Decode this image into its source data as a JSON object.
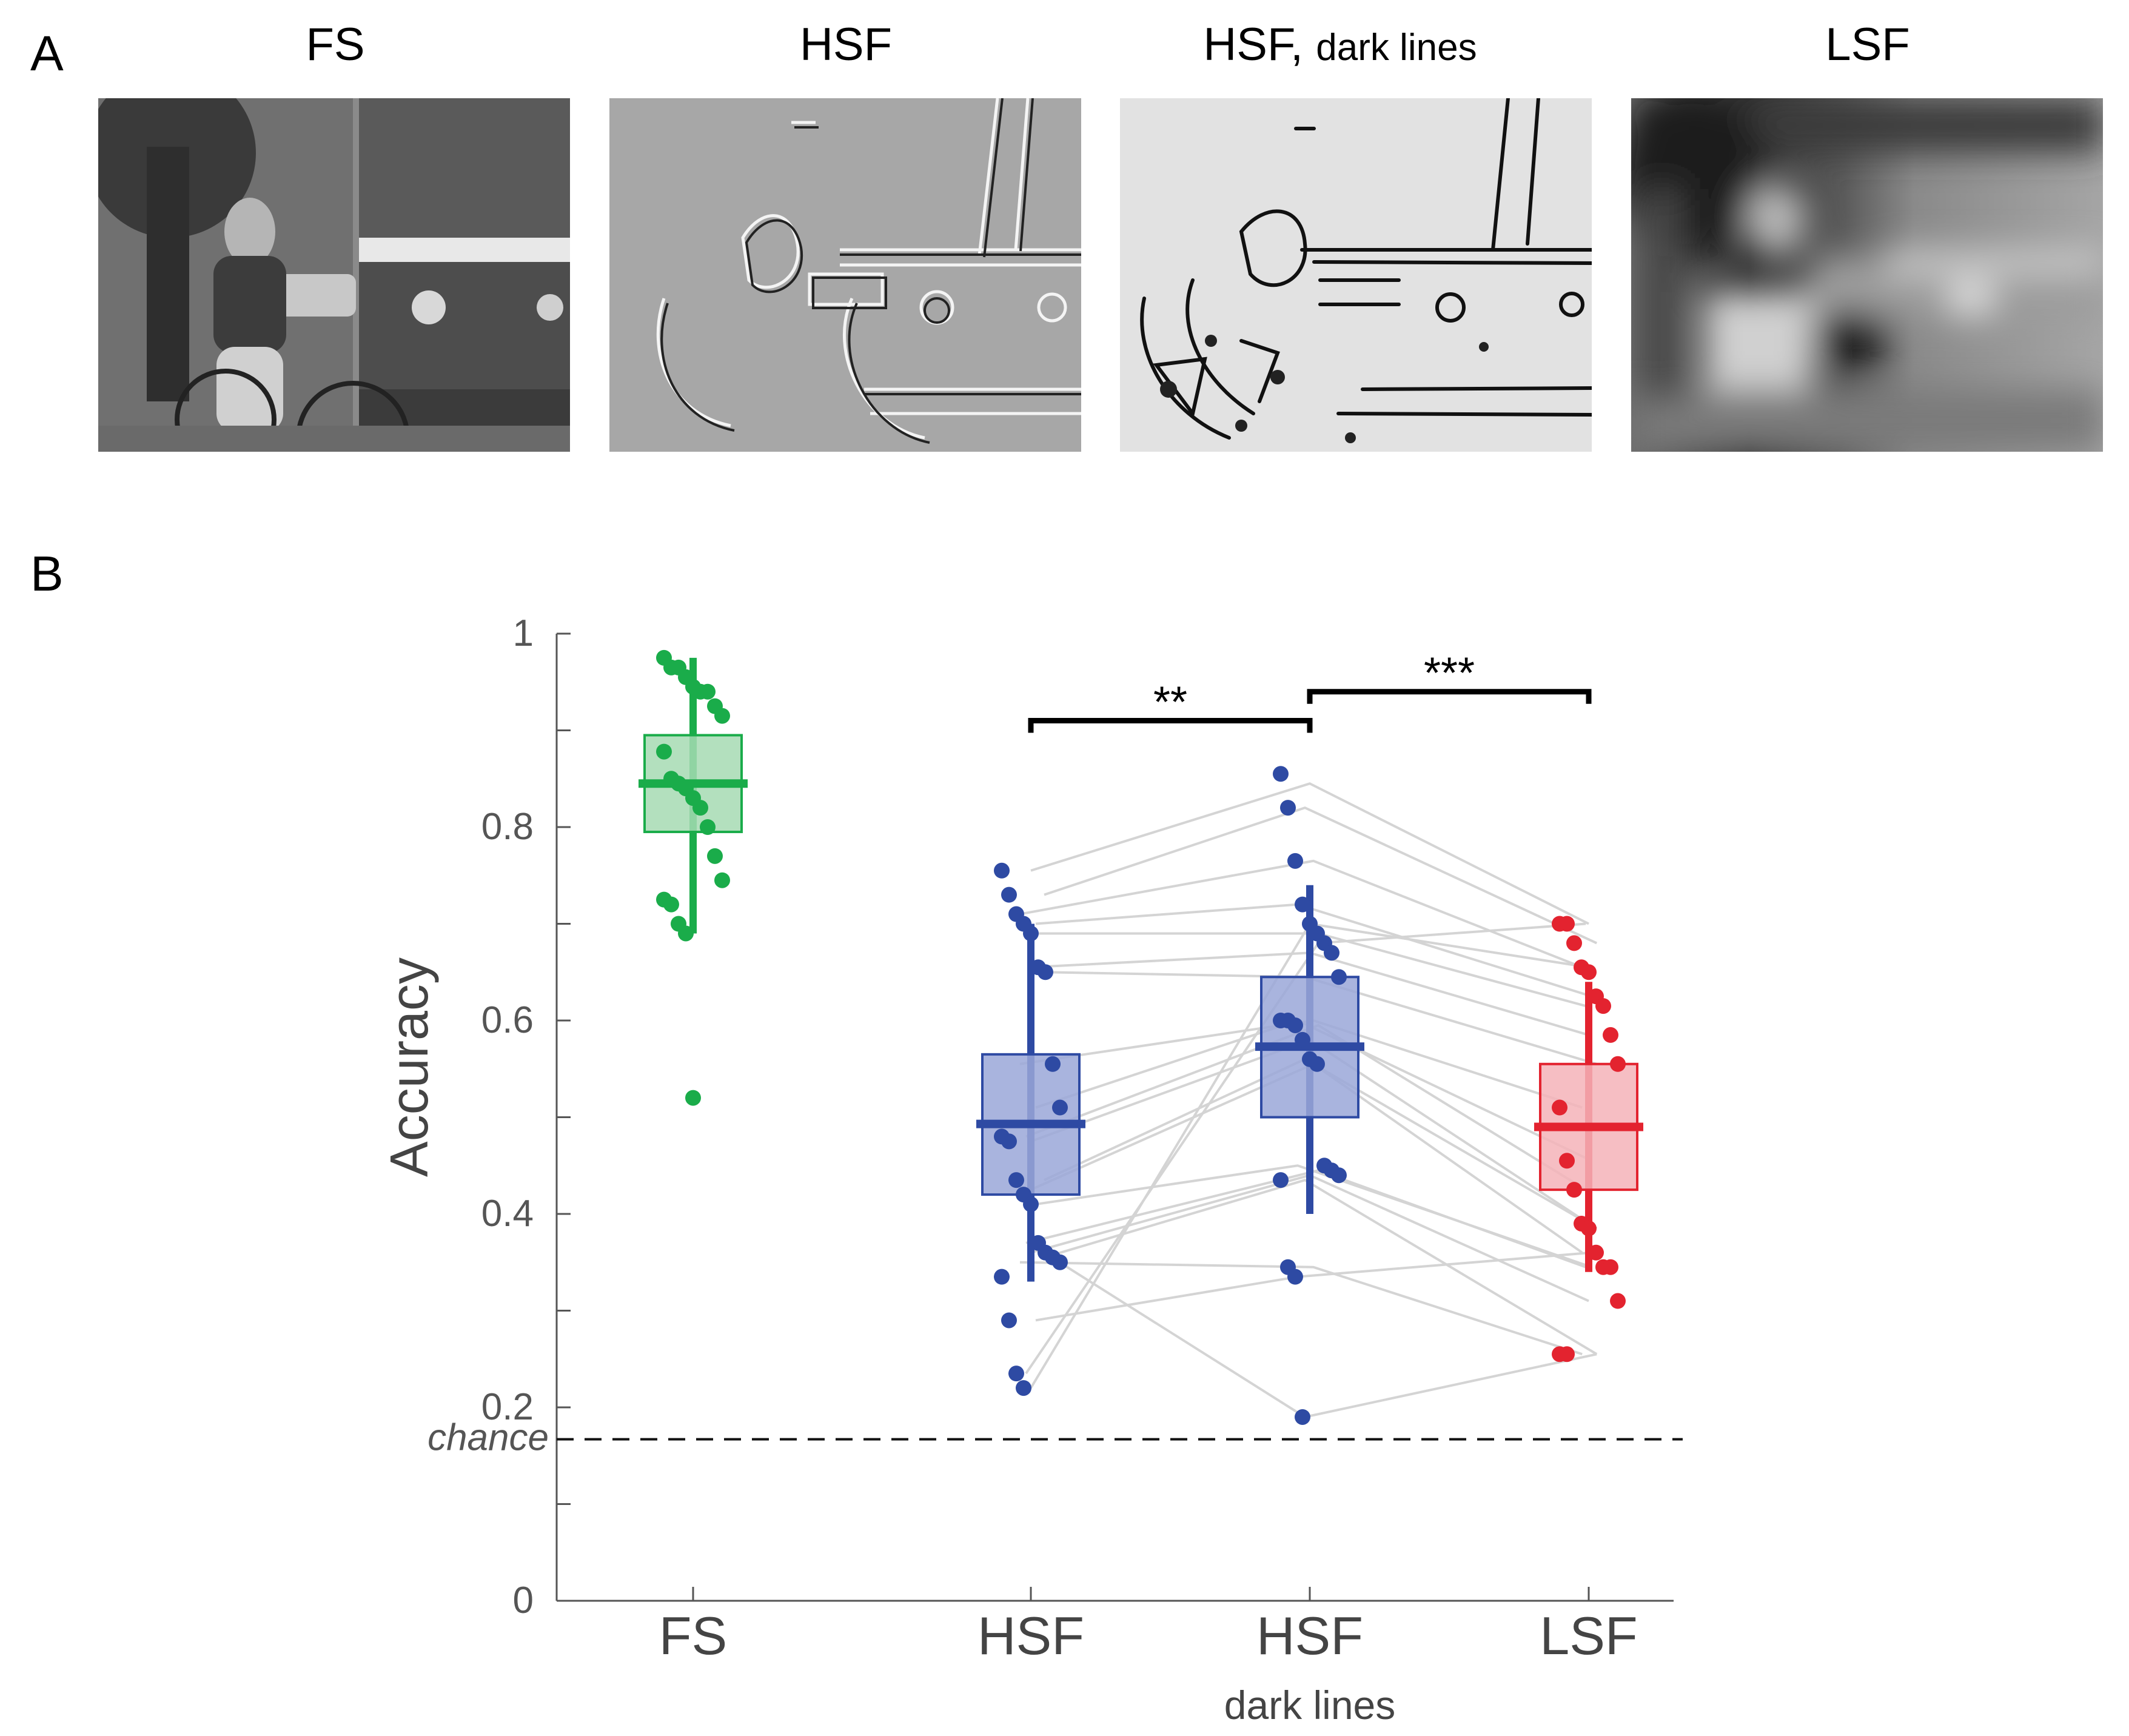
{
  "panels": {
    "a_label": "A",
    "b_label": "B"
  },
  "images": [
    {
      "title": "FS",
      "subtitle": ""
    },
    {
      "title": "HSF",
      "subtitle": ""
    },
    {
      "title": "HSF,",
      "subtitle": "dark lines"
    },
    {
      "title": "LSF",
      "subtitle": ""
    }
  ],
  "colors": {
    "fs": "#1aac4a",
    "hsf": "#2e4aa3",
    "hsf_light": "#9aa7d8",
    "lsf": "#e3232f",
    "lsf_light": "#f5b3b8",
    "fs_light": "#a6dbb3",
    "pair_line": "#d4d4d4"
  },
  "chart_data": {
    "type": "box",
    "ylabel": "Accuracy",
    "ylim": [
      0,
      1
    ],
    "yticks": [
      0,
      0.2,
      0.4,
      0.6,
      0.8,
      1
    ],
    "ytick_labels": [
      "0",
      "0.2",
      "0.4",
      "0.6",
      "0.8",
      "1"
    ],
    "chance_level": 0.167,
    "chance_label": "chance",
    "categories": [
      {
        "label": "FS",
        "sublabel": ""
      },
      {
        "label": "HSF",
        "sublabel": ""
      },
      {
        "label": "HSF",
        "sublabel": "dark lines"
      },
      {
        "label": "LSF",
        "sublabel": ""
      }
    ],
    "boxes": [
      {
        "name": "FS",
        "q1": 0.795,
        "median": 0.845,
        "q3": 0.895,
        "whisker_low": 0.69,
        "whisker_high": 0.975,
        "points": [
          0.975,
          0.965,
          0.965,
          0.955,
          0.945,
          0.94,
          0.94,
          0.925,
          0.915,
          0.878,
          0.85,
          0.845,
          0.84,
          0.83,
          0.82,
          0.8,
          0.77,
          0.745,
          0.725,
          0.72,
          0.7,
          0.69,
          0.52
        ]
      },
      {
        "name": "HSF",
        "q1": 0.42,
        "median": 0.493,
        "q3": 0.565,
        "whisker_low": 0.33,
        "whisker_high": 0.7,
        "points": [
          0.755,
          0.73,
          0.71,
          0.7,
          0.69,
          0.655,
          0.65,
          0.555,
          0.51,
          0.48,
          0.475,
          0.435,
          0.42,
          0.41,
          0.37,
          0.36,
          0.355,
          0.35,
          0.335,
          0.29,
          0.235,
          0.22
        ]
      },
      {
        "name": "HSF dark lines",
        "q1": 0.5,
        "median": 0.573,
        "q3": 0.645,
        "whisker_low": 0.4,
        "whisker_high": 0.74,
        "points": [
          0.855,
          0.82,
          0.765,
          0.72,
          0.7,
          0.69,
          0.68,
          0.67,
          0.645,
          0.6,
          0.6,
          0.595,
          0.58,
          0.56,
          0.555,
          0.45,
          0.445,
          0.44,
          0.435,
          0.345,
          0.335,
          0.19
        ]
      },
      {
        "name": "LSF",
        "q1": 0.425,
        "median": 0.49,
        "q3": 0.555,
        "whisker_low": 0.34,
        "whisker_high": 0.64,
        "points": [
          0.7,
          0.7,
          0.68,
          0.655,
          0.65,
          0.625,
          0.615,
          0.585,
          0.555,
          0.51,
          0.455,
          0.425,
          0.39,
          0.385,
          0.36,
          0.345,
          0.345,
          0.31,
          0.255,
          0.255
        ]
      }
    ],
    "pairs_hsf_dark_lsf": [
      [
        0.755,
        0.845,
        0.7
      ],
      [
        0.73,
        0.82,
        0.68
      ],
      [
        0.71,
        0.765,
        0.655
      ],
      [
        0.7,
        0.72,
        0.625
      ],
      [
        0.69,
        0.69,
        0.615
      ],
      [
        0.655,
        0.67,
        0.585
      ],
      [
        0.65,
        0.645,
        0.555
      ],
      [
        0.555,
        0.6,
        0.51
      ],
      [
        0.51,
        0.6,
        0.455
      ],
      [
        0.48,
        0.595,
        0.425
      ],
      [
        0.475,
        0.58,
        0.39
      ],
      [
        0.435,
        0.56,
        0.385
      ],
      [
        0.42,
        0.555,
        0.36
      ],
      [
        0.41,
        0.45,
        0.345
      ],
      [
        0.37,
        0.445,
        0.345
      ],
      [
        0.36,
        0.44,
        0.31
      ],
      [
        0.355,
        0.435,
        0.255
      ],
      [
        0.35,
        0.345,
        0.255
      ],
      [
        0.29,
        0.335,
        0.36
      ],
      [
        0.235,
        0.68,
        0.7
      ],
      [
        0.22,
        0.7,
        0.655
      ],
      [
        0.36,
        0.19,
        0.255
      ]
    ],
    "significance": [
      {
        "from": 1,
        "to": 2,
        "label": "**",
        "level": 0.91
      },
      {
        "from": 2,
        "to": 3,
        "label": "***",
        "level": 0.94
      }
    ]
  }
}
